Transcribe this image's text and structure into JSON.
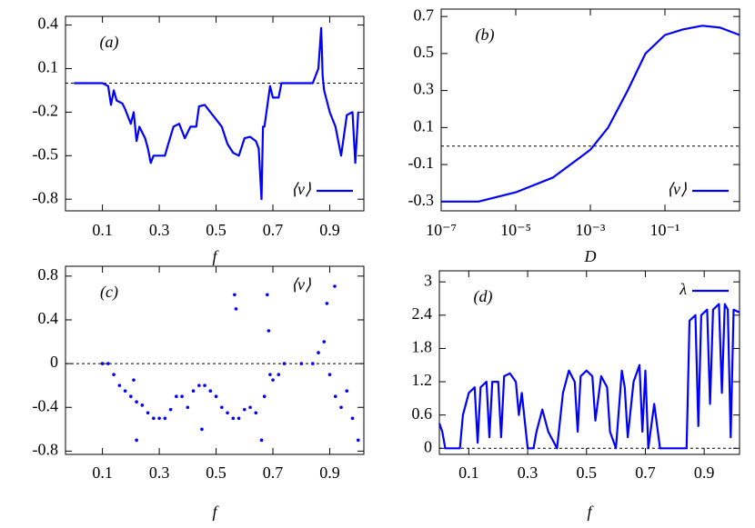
{
  "chart_data": [
    {
      "type": "line",
      "title": "(a)",
      "xlabel": "f",
      "xlim": [
        -0.03,
        1.02
      ],
      "ylim": [
        -0.88,
        0.46
      ],
      "xticks": [
        0.1,
        0.3,
        0.5,
        0.7,
        0.9
      ],
      "yticks": [
        0.4,
        0.1,
        -0.2,
        -0.5,
        -0.8
      ],
      "hline": 0,
      "legend": "lower right",
      "x": [
        0,
        0.05,
        0.1,
        0.12,
        0.13,
        0.14,
        0.15,
        0.17,
        0.18,
        0.2,
        0.21,
        0.22,
        0.23,
        0.25,
        0.26,
        0.27,
        0.28,
        0.3,
        0.32,
        0.33,
        0.35,
        0.37,
        0.39,
        0.41,
        0.43,
        0.44,
        0.46,
        0.48,
        0.5,
        0.52,
        0.54,
        0.56,
        0.58,
        0.6,
        0.62,
        0.64,
        0.65,
        0.66,
        0.665,
        0.67,
        0.69,
        0.7,
        0.72,
        0.73,
        0.76,
        0.8,
        0.84,
        0.86,
        0.87,
        0.875,
        0.88,
        0.9,
        0.92,
        0.94,
        0.96,
        0.98,
        0.99,
        1.0
      ],
      "series": [
        {
          "name": "⟨v⟩",
          "color": "#0000ff",
          "values": [
            0,
            0,
            0,
            -0.02,
            -0.15,
            -0.05,
            -0.12,
            -0.14,
            -0.18,
            -0.28,
            -0.2,
            -0.4,
            -0.3,
            -0.38,
            -0.45,
            -0.55,
            -0.5,
            -0.5,
            -0.5,
            -0.43,
            -0.3,
            -0.28,
            -0.38,
            -0.3,
            -0.3,
            -0.16,
            -0.15,
            -0.2,
            -0.25,
            -0.3,
            -0.42,
            -0.48,
            -0.5,
            -0.38,
            -0.37,
            -0.4,
            -0.45,
            -0.8,
            -0.3,
            -0.3,
            -0.02,
            -0.1,
            -0.1,
            0,
            0,
            0,
            0,
            0.1,
            0.38,
            0.05,
            -0.05,
            -0.2,
            -0.3,
            -0.5,
            -0.22,
            -0.2,
            -0.55,
            -0.2
          ]
        }
      ]
    },
    {
      "type": "line",
      "title": "(b)",
      "xlabel": "D",
      "xscale": "log",
      "xlim": [
        1e-07,
        10
      ],
      "ylim": [
        -0.35,
        0.74
      ],
      "xticks": [
        {
          "value": 1e-07,
          "label": "10⁻⁷"
        },
        {
          "value": 1e-05,
          "label": "10⁻⁵"
        },
        {
          "value": 0.001,
          "label": "10⁻³"
        },
        {
          "value": 0.1,
          "label": "10⁻¹"
        }
      ],
      "yticks": [
        0.7,
        0.5,
        0.3,
        0.1,
        -0.1,
        -0.3
      ],
      "hline": 0,
      "legend": "lower right",
      "x": [
        1e-07,
        1e-06,
        1e-05,
        0.0001,
        0.001,
        0.003,
        0.01,
        0.03,
        0.1,
        0.3,
        1,
        3,
        10
      ],
      "series": [
        {
          "name": "⟨v⟩",
          "color": "#0000ff",
          "values": [
            -0.3,
            -0.3,
            -0.25,
            -0.17,
            -0.02,
            0.1,
            0.3,
            0.5,
            0.6,
            0.63,
            0.65,
            0.64,
            0.6
          ]
        }
      ]
    },
    {
      "type": "scatter",
      "title": "(c)",
      "xlabel": "f",
      "xlim": [
        -0.03,
        1.02
      ],
      "ylim": [
        -0.83,
        0.89
      ],
      "xticks": [
        0.1,
        0.3,
        0.5,
        0.7,
        0.9
      ],
      "yticks": [
        0.8,
        0.4,
        0,
        -0.4,
        -0.8
      ],
      "hline": 0,
      "legend": "upper right",
      "x": [
        0.1,
        0.12,
        0.14,
        0.16,
        0.18,
        0.2,
        0.21,
        0.22,
        0.22,
        0.24,
        0.26,
        0.28,
        0.3,
        0.32,
        0.34,
        0.36,
        0.38,
        0.4,
        0.42,
        0.44,
        0.45,
        0.46,
        0.48,
        0.5,
        0.52,
        0.54,
        0.56,
        0.565,
        0.57,
        0.58,
        0.6,
        0.62,
        0.64,
        0.66,
        0.67,
        0.68,
        0.685,
        0.69,
        0.7,
        0.72,
        0.74,
        0.8,
        0.84,
        0.86,
        0.88,
        0.89,
        0.9,
        0.92,
        0.94,
        0.96,
        0.98,
        1.0
      ],
      "series": [
        {
          "name": "⟨v⟩",
          "color": "#0000ff",
          "values": [
            0,
            0,
            -0.1,
            -0.2,
            -0.25,
            -0.3,
            -0.15,
            -0.35,
            -0.7,
            -0.38,
            -0.45,
            -0.5,
            -0.5,
            -0.5,
            -0.42,
            -0.3,
            -0.3,
            -0.4,
            -0.25,
            -0.2,
            -0.6,
            -0.2,
            -0.25,
            -0.3,
            -0.4,
            -0.45,
            -0.5,
            0.63,
            0.5,
            -0.5,
            -0.42,
            -0.4,
            -0.45,
            -0.7,
            -0.3,
            0.63,
            0.3,
            -0.1,
            -0.15,
            -0.1,
            0,
            0,
            0,
            0.1,
            0.2,
            0.55,
            -0.1,
            -0.3,
            -0.4,
            -0.25,
            -0.5,
            -0.7
          ]
        }
      ]
    },
    {
      "type": "line",
      "title": "(d)",
      "xlabel": "f",
      "xlim": [
        0,
        1.02
      ],
      "ylim": [
        -0.11,
        3.2
      ],
      "xticks": [
        0.1,
        0.3,
        0.5,
        0.7,
        0.9
      ],
      "yticks": [
        3,
        2.4,
        1.8,
        1.2,
        0.6,
        0
      ],
      "hline": 0,
      "legend": "upper right",
      "x": [
        0,
        0.01,
        0.02,
        0.05,
        0.07,
        0.08,
        0.1,
        0.12,
        0.13,
        0.14,
        0.16,
        0.17,
        0.18,
        0.2,
        0.21,
        0.22,
        0.24,
        0.26,
        0.27,
        0.28,
        0.3,
        0.32,
        0.33,
        0.35,
        0.37,
        0.38,
        0.4,
        0.42,
        0.44,
        0.46,
        0.47,
        0.48,
        0.5,
        0.52,
        0.53,
        0.55,
        0.57,
        0.58,
        0.6,
        0.62,
        0.63,
        0.64,
        0.66,
        0.68,
        0.69,
        0.7,
        0.71,
        0.73,
        0.75,
        0.8,
        0.84,
        0.85,
        0.87,
        0.88,
        0.89,
        0.91,
        0.92,
        0.93,
        0.95,
        0.96,
        0.97,
        0.98,
        0.99,
        1.0,
        1.02
      ],
      "series": [
        {
          "name": "λ",
          "color": "#0000ff",
          "values": [
            0.45,
            0.3,
            0,
            0,
            0,
            0.6,
            1.0,
            1.1,
            0.1,
            1.1,
            1.2,
            0.2,
            1.2,
            1.2,
            0.2,
            1.3,
            1.35,
            1.2,
            0.6,
            1.0,
            0,
            0,
            0.3,
            0.7,
            0.3,
            0.2,
            0,
            1.0,
            1.4,
            1.2,
            0.3,
            1.3,
            1.4,
            1.3,
            0.5,
            1.3,
            1.1,
            0.3,
            0,
            1.4,
            1.1,
            0.2,
            1.2,
            1.5,
            0.3,
            1.4,
            0,
            0.8,
            0,
            0,
            0,
            2.3,
            2.4,
            0.4,
            2.4,
            2.5,
            0.8,
            2.5,
            2.6,
            1.0,
            2.6,
            2.5,
            0.2,
            2.5,
            2.45
          ]
        }
      ]
    }
  ]
}
